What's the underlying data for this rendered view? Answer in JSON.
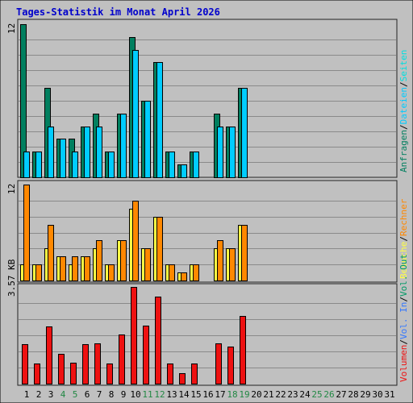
{
  "title": "Tages-Statistik im Monat April 2026",
  "colors": {
    "frame_bg": "#c0c0c0",
    "plot_bg": "#c0c0c0",
    "title": "#0000cc",
    "grid": "#8a8a8a",
    "anfragen": "#007f5f",
    "dateien": "#00ccff",
    "seiten": "#00e0e0",
    "besuche": "#ffff44",
    "rechner": "#ff8800",
    "volumen": "#ee1111",
    "vol_in": "#3377ff",
    "vol_out": "#009966",
    "separator": "#222222",
    "weekend_label": "#228844",
    "weekday_label": "#000000"
  },
  "chart_data": [
    {
      "type": "bar",
      "panel": "top",
      "y_tick_label": "12",
      "ylim": [
        0,
        12
      ],
      "x": [
        1,
        2,
        3,
        4,
        5,
        6,
        7,
        8,
        9,
        10,
        11,
        12,
        13,
        14,
        15,
        16,
        17,
        18,
        19,
        20,
        21,
        22,
        23,
        24,
        25,
        26,
        27,
        28,
        29,
        30,
        31
      ],
      "series": [
        {
          "name": "Anfragen",
          "values": [
            12,
            2,
            7,
            3,
            3,
            4,
            5,
            2,
            5,
            11,
            6,
            9,
            2,
            1,
            2,
            0,
            5,
            4,
            7,
            0,
            0,
            0,
            0,
            0,
            0,
            0,
            0,
            0,
            0,
            0,
            0
          ]
        },
        {
          "name": "Dateien",
          "values": [
            2,
            2,
            4,
            3,
            2,
            4,
            4,
            2,
            5,
            10,
            6,
            9,
            2,
            1,
            2,
            0,
            4,
            4,
            7,
            0,
            0,
            0,
            0,
            0,
            0,
            0,
            0,
            0,
            0,
            0,
            0
          ]
        },
        {
          "name": "Seiten",
          "values": [
            0,
            0,
            0,
            0,
            0,
            0,
            0,
            0,
            0,
            0,
            0,
            0,
            0,
            0,
            0,
            0,
            0,
            0,
            0,
            0,
            0,
            0,
            0,
            0,
            0,
            0,
            0,
            0,
            0,
            0,
            0
          ]
        }
      ]
    },
    {
      "type": "bar",
      "panel": "middle",
      "y_tick_label": "12",
      "ylim": [
        0,
        12
      ],
      "x": [
        1,
        2,
        3,
        4,
        5,
        6,
        7,
        8,
        9,
        10,
        11,
        12,
        13,
        14,
        15,
        16,
        17,
        18,
        19,
        20,
        21,
        22,
        23,
        24,
        25,
        26,
        27,
        28,
        29,
        30,
        31
      ],
      "series": [
        {
          "name": "Besuche",
          "values": [
            2,
            2,
            4,
            3,
            2,
            3,
            4,
            2,
            5,
            9,
            4,
            8,
            2,
            1,
            2,
            0,
            4,
            4,
            7,
            0,
            0,
            0,
            0,
            0,
            0,
            0,
            0,
            0,
            0,
            0,
            0
          ]
        },
        {
          "name": "Rechner",
          "values": [
            12,
            2,
            7,
            3,
            3,
            3,
            5,
            2,
            5,
            10,
            4,
            8,
            2,
            1,
            2,
            0,
            5,
            4,
            7,
            0,
            0,
            0,
            0,
            0,
            0,
            0,
            0,
            0,
            0,
            0,
            0
          ]
        }
      ]
    },
    {
      "type": "bar",
      "panel": "bottom",
      "y_tick_label": "3.57 KB",
      "ylim": [
        0,
        3.57
      ],
      "x": [
        1,
        2,
        3,
        4,
        5,
        6,
        7,
        8,
        9,
        10,
        11,
        12,
        13,
        14,
        15,
        16,
        17,
        18,
        19,
        20,
        21,
        22,
        23,
        24,
        25,
        26,
        27,
        28,
        29,
        30,
        31
      ],
      "series": [
        {
          "name": "Volumen",
          "values": [
            1.46,
            0.73,
            2.1,
            1.1,
            0.77,
            1.45,
            1.5,
            0.74,
            1.8,
            3.57,
            2.15,
            3.2,
            0.74,
            0.38,
            0.74,
            0,
            1.5,
            1.36,
            2.5,
            0,
            0,
            0,
            0,
            0,
            0,
            0,
            0,
            0,
            0,
            0,
            0
          ]
        },
        {
          "name": "Vol. In",
          "values": [
            0,
            0,
            0,
            0,
            0,
            0,
            0,
            0,
            0,
            0,
            0,
            0,
            0,
            0,
            0,
            0,
            0,
            0,
            0,
            0,
            0,
            0,
            0,
            0,
            0,
            0,
            0,
            0,
            0,
            0,
            0
          ]
        },
        {
          "name": "Vol. Out",
          "values": [
            0,
            0,
            0,
            0,
            0,
            0,
            0,
            0,
            0,
            0,
            0,
            0,
            0,
            0,
            0,
            0,
            0,
            0,
            0,
            0,
            0,
            0,
            0,
            0,
            0,
            0,
            0,
            0,
            0,
            0,
            0
          ]
        }
      ]
    }
  ],
  "x_labels": [
    "1",
    "2",
    "3",
    "4",
    "5",
    "6",
    "7",
    "8",
    "9",
    "10",
    "11",
    "12",
    "13",
    "14",
    "15",
    "16",
    "17",
    "18",
    "19",
    "20",
    "21",
    "22",
    "23",
    "24",
    "25",
    "26",
    "27",
    "28",
    "29",
    "30",
    "31"
  ],
  "weekend_days": [
    4,
    5,
    11,
    12,
    18,
    19,
    25,
    26
  ],
  "legends": {
    "top": [
      {
        "text": "Anfragen",
        "color_key": "anfragen"
      },
      {
        "text": "Dateien",
        "color_key": "dateien"
      },
      {
        "text": "Seiten",
        "color_key": "seiten"
      }
    ],
    "middle": [
      {
        "text": "Besuche",
        "color_key": "besuche"
      },
      {
        "text": "Rechner",
        "color_key": "rechner"
      }
    ],
    "bottom": [
      {
        "text": "Volumen",
        "color_key": "volumen"
      },
      {
        "text": "Vol. In",
        "color_key": "vol_in"
      },
      {
        "text": "Vol. Out",
        "color_key": "vol_out"
      }
    ],
    "separator": "/"
  }
}
